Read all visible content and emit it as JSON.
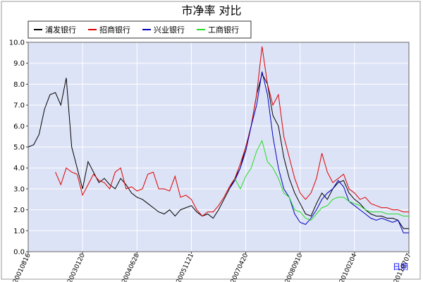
{
  "chart_data": {
    "type": "line",
    "title": "市净率  对比",
    "x_label": "日期",
    "categories": [
      "20010816",
      null,
      null,
      null,
      null,
      null,
      null,
      null,
      null,
      null,
      "20030120",
      null,
      null,
      null,
      null,
      null,
      null,
      null,
      null,
      null,
      "20040628",
      null,
      null,
      null,
      null,
      null,
      null,
      null,
      null,
      null,
      "20051121",
      null,
      null,
      null,
      null,
      null,
      null,
      null,
      null,
      null,
      "20070420",
      null,
      null,
      null,
      null,
      null,
      null,
      null,
      null,
      null,
      "20080910",
      null,
      null,
      null,
      null,
      null,
      null,
      null,
      null,
      null,
      "20100204",
      null,
      null,
      null,
      null,
      null,
      null,
      null,
      null,
      null,
      "20110707"
    ],
    "series": [
      {
        "name": "浦发银行",
        "color": "#000000",
        "values": [
          5.0,
          5.1,
          5.6,
          6.8,
          7.5,
          7.6,
          7.0,
          8.3,
          5.0,
          4.0,
          3.0,
          4.3,
          3.8,
          3.3,
          3.5,
          3.2,
          3.0,
          3.5,
          3.2,
          2.8,
          2.6,
          2.5,
          2.3,
          2.1,
          1.9,
          1.8,
          2.0,
          1.7,
          2.0,
          2.1,
          2.2,
          1.9,
          1.7,
          1.8,
          1.6,
          2.0,
          2.5,
          3.0,
          3.5,
          4.0,
          5.0,
          6.0,
          7.5,
          8.5,
          8.0,
          6.5,
          6.0,
          4.5,
          3.5,
          2.8,
          2.3,
          1.8,
          1.7,
          2.3,
          2.8,
          2.5,
          3.0,
          3.3,
          3.4,
          2.8,
          2.5,
          2.3,
          2.0,
          1.8,
          1.7,
          1.7,
          1.6,
          1.6,
          1.5,
          1.1,
          1.1
        ]
      },
      {
        "name": "招商银行",
        "color": "#dd0000",
        "values": [
          null,
          null,
          null,
          null,
          null,
          3.8,
          3.2,
          4.0,
          3.8,
          3.7,
          2.7,
          3.2,
          3.7,
          3.4,
          3.3,
          3.0,
          3.8,
          4.0,
          3.0,
          3.1,
          2.9,
          3.0,
          3.7,
          3.8,
          3.0,
          3.0,
          2.9,
          3.6,
          2.6,
          2.7,
          2.5,
          2.0,
          1.7,
          1.9,
          1.9,
          2.2,
          2.6,
          3.1,
          3.5,
          4.2,
          5.0,
          6.0,
          7.5,
          9.8,
          8.0,
          7.0,
          7.5,
          5.5,
          4.5,
          3.5,
          2.8,
          2.5,
          2.8,
          3.5,
          4.7,
          3.8,
          3.3,
          3.5,
          3.7,
          3.0,
          2.8,
          2.5,
          2.6,
          2.3,
          2.2,
          2.1,
          2.1,
          2.0,
          2.0,
          1.9,
          1.9
        ]
      },
      {
        "name": "兴业银行",
        "color": "#0000bb",
        "values": [
          null,
          null,
          null,
          null,
          null,
          null,
          null,
          null,
          null,
          null,
          null,
          null,
          null,
          null,
          null,
          null,
          null,
          null,
          null,
          null,
          null,
          null,
          null,
          null,
          null,
          null,
          null,
          null,
          null,
          null,
          null,
          null,
          null,
          null,
          null,
          null,
          null,
          3.0,
          3.4,
          4.0,
          4.8,
          6.0,
          7.0,
          8.6,
          7.5,
          5.5,
          4.0,
          3.0,
          2.6,
          1.8,
          1.4,
          1.3,
          1.6,
          2.0,
          2.5,
          2.8,
          3.0,
          3.4,
          3.1,
          2.4,
          2.2,
          2.0,
          1.8,
          1.6,
          1.5,
          1.6,
          1.5,
          1.4,
          1.5,
          0.9,
          0.9
        ]
      },
      {
        "name": "工商银行",
        "color": "#22dd22",
        "values": [
          null,
          null,
          null,
          null,
          null,
          null,
          null,
          null,
          null,
          null,
          null,
          null,
          null,
          null,
          null,
          null,
          null,
          null,
          null,
          null,
          null,
          null,
          null,
          null,
          null,
          null,
          null,
          null,
          null,
          null,
          null,
          null,
          null,
          null,
          null,
          null,
          null,
          null,
          3.5,
          3.0,
          3.6,
          4.0,
          4.8,
          5.3,
          4.3,
          4.0,
          3.5,
          2.8,
          2.6,
          2.0,
          1.9,
          1.6,
          1.5,
          1.8,
          2.1,
          2.2,
          2.5,
          2.6,
          2.6,
          2.4,
          2.3,
          2.2,
          2.0,
          1.9,
          1.9,
          1.9,
          1.8,
          1.8,
          1.8,
          1.7,
          1.7
        ]
      }
    ],
    "ylim": [
      0,
      10
    ],
    "yticks": [
      {
        "value": 0,
        "label": "0.0"
      },
      {
        "value": 1,
        "label": "1.0"
      },
      {
        "value": 2,
        "label": "2.0"
      },
      {
        "value": 3,
        "label": "3.0"
      },
      {
        "value": 4,
        "label": "4.0"
      },
      {
        "value": 5,
        "label": "5.0"
      },
      {
        "value": 6,
        "label": "6.0"
      },
      {
        "value": 7,
        "label": "7.0"
      },
      {
        "value": 8,
        "label": "8.0"
      },
      {
        "value": 9,
        "label": "9.0"
      },
      {
        "value": 10,
        "label": "10.0"
      }
    ],
    "grid": true
  }
}
